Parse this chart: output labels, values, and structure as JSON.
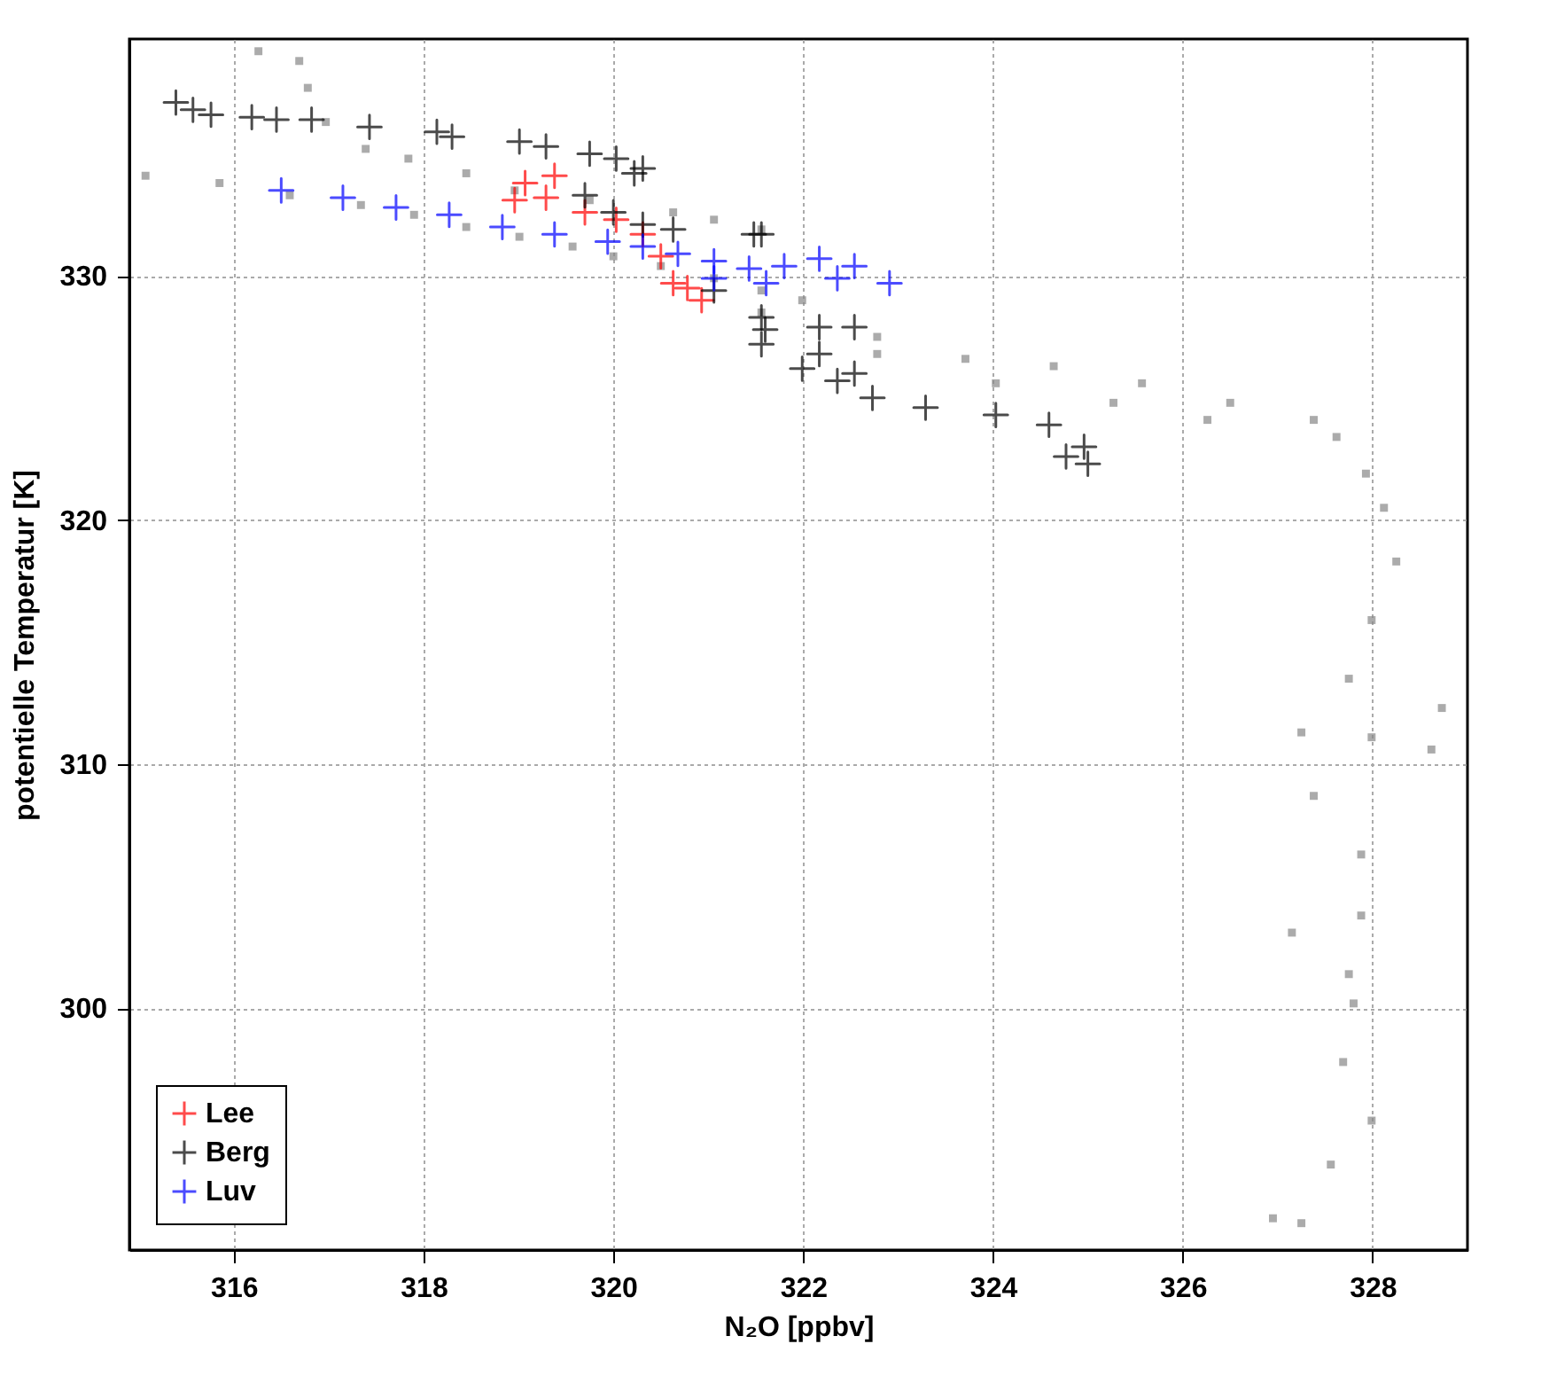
{
  "chart_data": {
    "type": "scatter",
    "xlabel": "N₂O [ppbv]",
    "ylabel": "potentielle Temperatur [K]",
    "xlim": [
      314.9,
      329.0
    ],
    "ylim": [
      290.1,
      339.7
    ],
    "xticks": [
      316,
      318,
      320,
      322,
      324,
      326,
      328
    ],
    "yticks": [
      300,
      310,
      320,
      330
    ],
    "grid": true,
    "legend": "bottom left",
    "series": [
      {
        "color": "#888888",
        "marker": "square",
        "x": [
          315.07,
          315.85,
          316.59,
          317.34,
          317.9,
          318.45,
          319.01,
          319.57,
          320.0,
          320.5,
          321.06,
          321.56,
          321.99,
          321.56,
          322.78,
          324.03,
          325.27,
          326.26,
          316.26,
          316.69,
          316.78,
          316.97,
          317.39,
          317.84,
          318.45,
          318.96,
          319.75,
          320.63,
          321.06,
          321.56,
          322.78,
          323.71,
          324.64,
          325.57,
          326.5,
          327.38,
          327.62,
          327.93,
          328.12,
          328.25,
          327.99,
          327.75,
          328.73,
          327.99,
          327.25,
          328.62,
          327.38,
          327.88,
          327.88,
          327.15,
          327.75,
          327.8,
          327.69,
          327.99,
          327.56,
          327.25,
          326.95
        ],
        "values": [
          334.1,
          333.8,
          333.3,
          332.9,
          332.5,
          332.0,
          331.6,
          331.2,
          330.8,
          330.4,
          329.9,
          329.4,
          329.0,
          328.5,
          326.8,
          325.6,
          324.8,
          324.1,
          339.2,
          338.8,
          337.7,
          336.3,
          335.2,
          334.8,
          334.2,
          333.5,
          333.1,
          332.6,
          332.3,
          331.9,
          327.5,
          326.6,
          326.3,
          325.6,
          324.8,
          324.1,
          323.4,
          321.9,
          320.5,
          318.3,
          315.9,
          313.5,
          312.3,
          311.1,
          311.3,
          310.6,
          308.7,
          306.3,
          303.8,
          303.1,
          301.4,
          300.2,
          297.8,
          295.4,
          293.6,
          291.2,
          291.4
        ]
      },
      {
        "name": "Lee",
        "color": "#ff0000",
        "marker": "cross",
        "x": [
          318.96,
          319.07,
          319.38,
          319.29,
          319.7,
          320.03,
          320.31,
          320.5,
          320.63,
          320.93,
          320.78
        ],
        "values": [
          333.1,
          333.8,
          334.1,
          333.2,
          332.6,
          332.3,
          331.7,
          330.8,
          329.7,
          329.0,
          329.5
        ]
      },
      {
        "name": "Berg",
        "color": "#000000",
        "marker": "cross",
        "x": [
          315.39,
          315.57,
          315.76,
          316.19,
          316.45,
          316.82,
          317.43,
          318.14,
          318.3,
          319.01,
          319.29,
          319.75,
          320.03,
          320.22,
          320.31,
          319.7,
          320.0,
          320.31,
          320.63,
          321.48,
          321.56,
          321.06,
          321.56,
          322.17,
          322.54,
          321.56,
          322.17,
          322.54,
          322.73,
          323.29,
          324.03,
          324.59,
          324.96,
          324.77,
          325.0,
          321.6,
          321.99,
          322.36
        ],
        "values": [
          337.1,
          336.8,
          336.6,
          336.5,
          336.4,
          336.4,
          336.1,
          335.9,
          335.7,
          335.5,
          335.3,
          335.0,
          334.8,
          334.2,
          334.4,
          333.3,
          332.6,
          332.1,
          331.9,
          331.7,
          331.7,
          329.4,
          328.3,
          327.9,
          327.9,
          327.2,
          326.8,
          326.0,
          325.0,
          324.6,
          324.3,
          323.9,
          323.0,
          322.6,
          322.3,
          327.8,
          326.2,
          325.7
        ]
      },
      {
        "name": "Luv",
        "color": "#0000ff",
        "marker": "cross",
        "x": [
          316.5,
          317.15,
          317.71,
          318.27,
          318.83,
          319.38,
          319.94,
          320.31,
          320.68,
          321.06,
          321.43,
          321.8,
          322.17,
          322.54,
          322.91,
          322.36,
          321.61,
          321.06
        ],
        "values": [
          333.5,
          333.2,
          332.8,
          332.5,
          332.0,
          331.7,
          331.4,
          331.2,
          330.9,
          330.6,
          330.3,
          330.4,
          330.7,
          330.4,
          329.7,
          329.9,
          329.7,
          329.9
        ]
      }
    ]
  }
}
